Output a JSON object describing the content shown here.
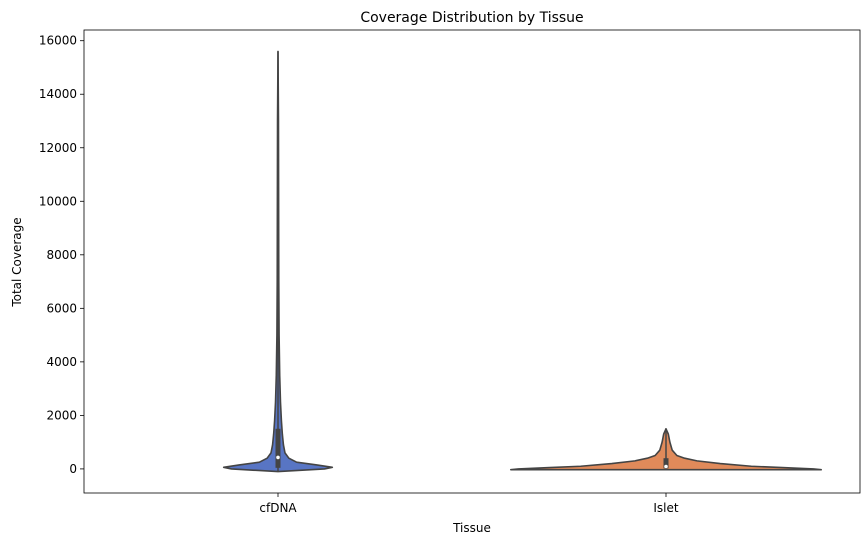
{
  "chart_data": {
    "type": "violin",
    "title": "Coverage Distribution by Tissue",
    "xlabel": "Tissue",
    "ylabel": "Total Coverage",
    "categories": [
      "cfDNA",
      "Islet"
    ],
    "ylim": [
      -900,
      16400
    ],
    "yticks": [
      0,
      2000,
      4000,
      6000,
      8000,
      10000,
      12000,
      14000,
      16000
    ],
    "grid": false,
    "violins": [
      {
        "category": "cfDNA",
        "color": "#5875c4",
        "min": -100,
        "max": 15600,
        "q1": 40,
        "median": 430,
        "q3": 1500,
        "density": [
          [
            -100,
            0.0
          ],
          [
            0,
            0.3
          ],
          [
            60,
            0.35
          ],
          [
            150,
            0.25
          ],
          [
            250,
            0.12
          ],
          [
            400,
            0.07
          ],
          [
            600,
            0.045
          ],
          [
            900,
            0.035
          ],
          [
            1300,
            0.028
          ],
          [
            1800,
            0.022
          ],
          [
            2500,
            0.016
          ],
          [
            3500,
            0.011
          ],
          [
            5000,
            0.007
          ],
          [
            7000,
            0.005
          ],
          [
            10000,
            0.004
          ],
          [
            13000,
            0.003
          ],
          [
            15600,
            0.0
          ]
        ]
      },
      {
        "category": "Islet",
        "color": "#e08a5a",
        "min": -30,
        "max": 1500,
        "q1": 20,
        "median": 90,
        "q3": 400,
        "density": [
          [
            -30,
            1.0
          ],
          [
            0,
            0.95
          ],
          [
            50,
            0.75
          ],
          [
            100,
            0.55
          ],
          [
            200,
            0.35
          ],
          [
            300,
            0.2
          ],
          [
            400,
            0.12
          ],
          [
            500,
            0.07
          ],
          [
            700,
            0.04
          ],
          [
            1000,
            0.025
          ],
          [
            1300,
            0.015
          ],
          [
            1500,
            0.0
          ]
        ]
      }
    ]
  }
}
